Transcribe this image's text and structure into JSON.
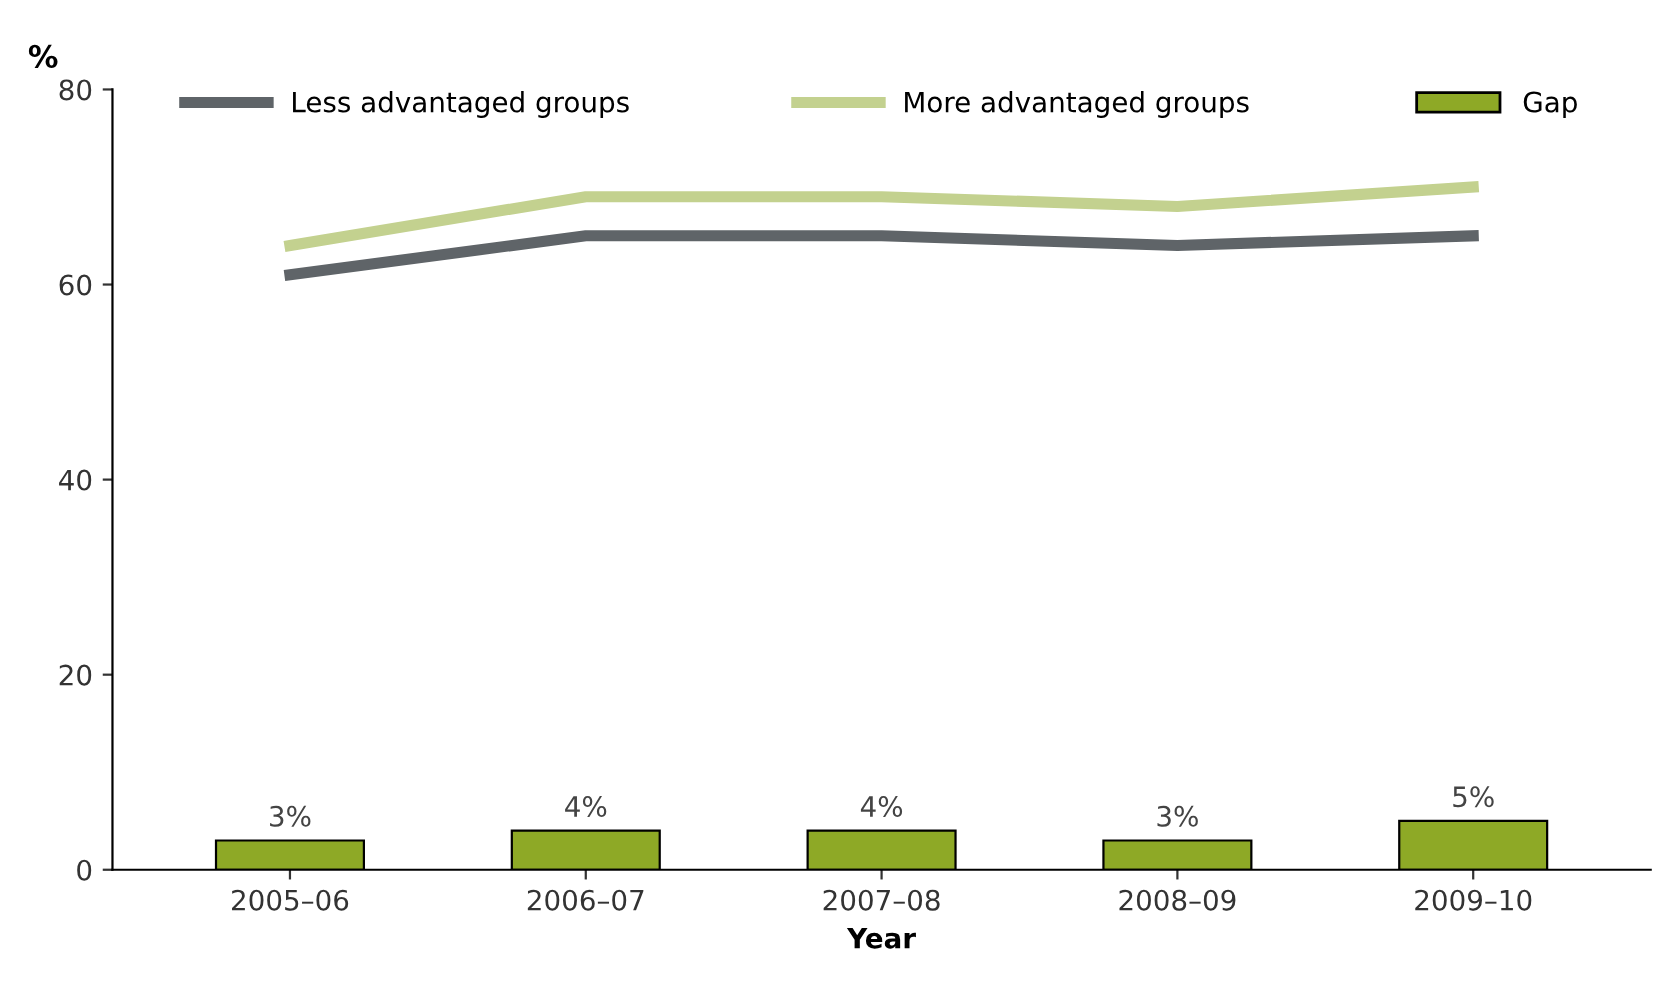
{
  "chart_data": {
    "type": "line",
    "ylabel": "%",
    "xlabel": "Year",
    "categories": [
      "2005–06",
      "2006–07",
      "2007–08",
      "2008–09",
      "2009–10"
    ],
    "series": [
      {
        "name": "Less advantaged groups",
        "color": "#5f6468",
        "values": [
          61,
          65,
          65,
          64,
          65
        ]
      },
      {
        "name": "More advantaged groups",
        "color": "#c3d18f",
        "values": [
          64,
          69,
          69,
          68,
          70
        ]
      },
      {
        "name": "Gap",
        "type": "bar",
        "color": "#8ea926",
        "values": [
          3,
          4,
          4,
          3,
          5
        ],
        "value_labels": [
          "3%",
          "4%",
          "4%",
          "3%",
          "5%"
        ]
      }
    ],
    "ylim": [
      0,
      80
    ],
    "yticks": [
      0,
      20,
      40,
      60,
      80
    ],
    "grid": false,
    "legend": "top",
    "marker": "none",
    "line_style": "solid"
  }
}
